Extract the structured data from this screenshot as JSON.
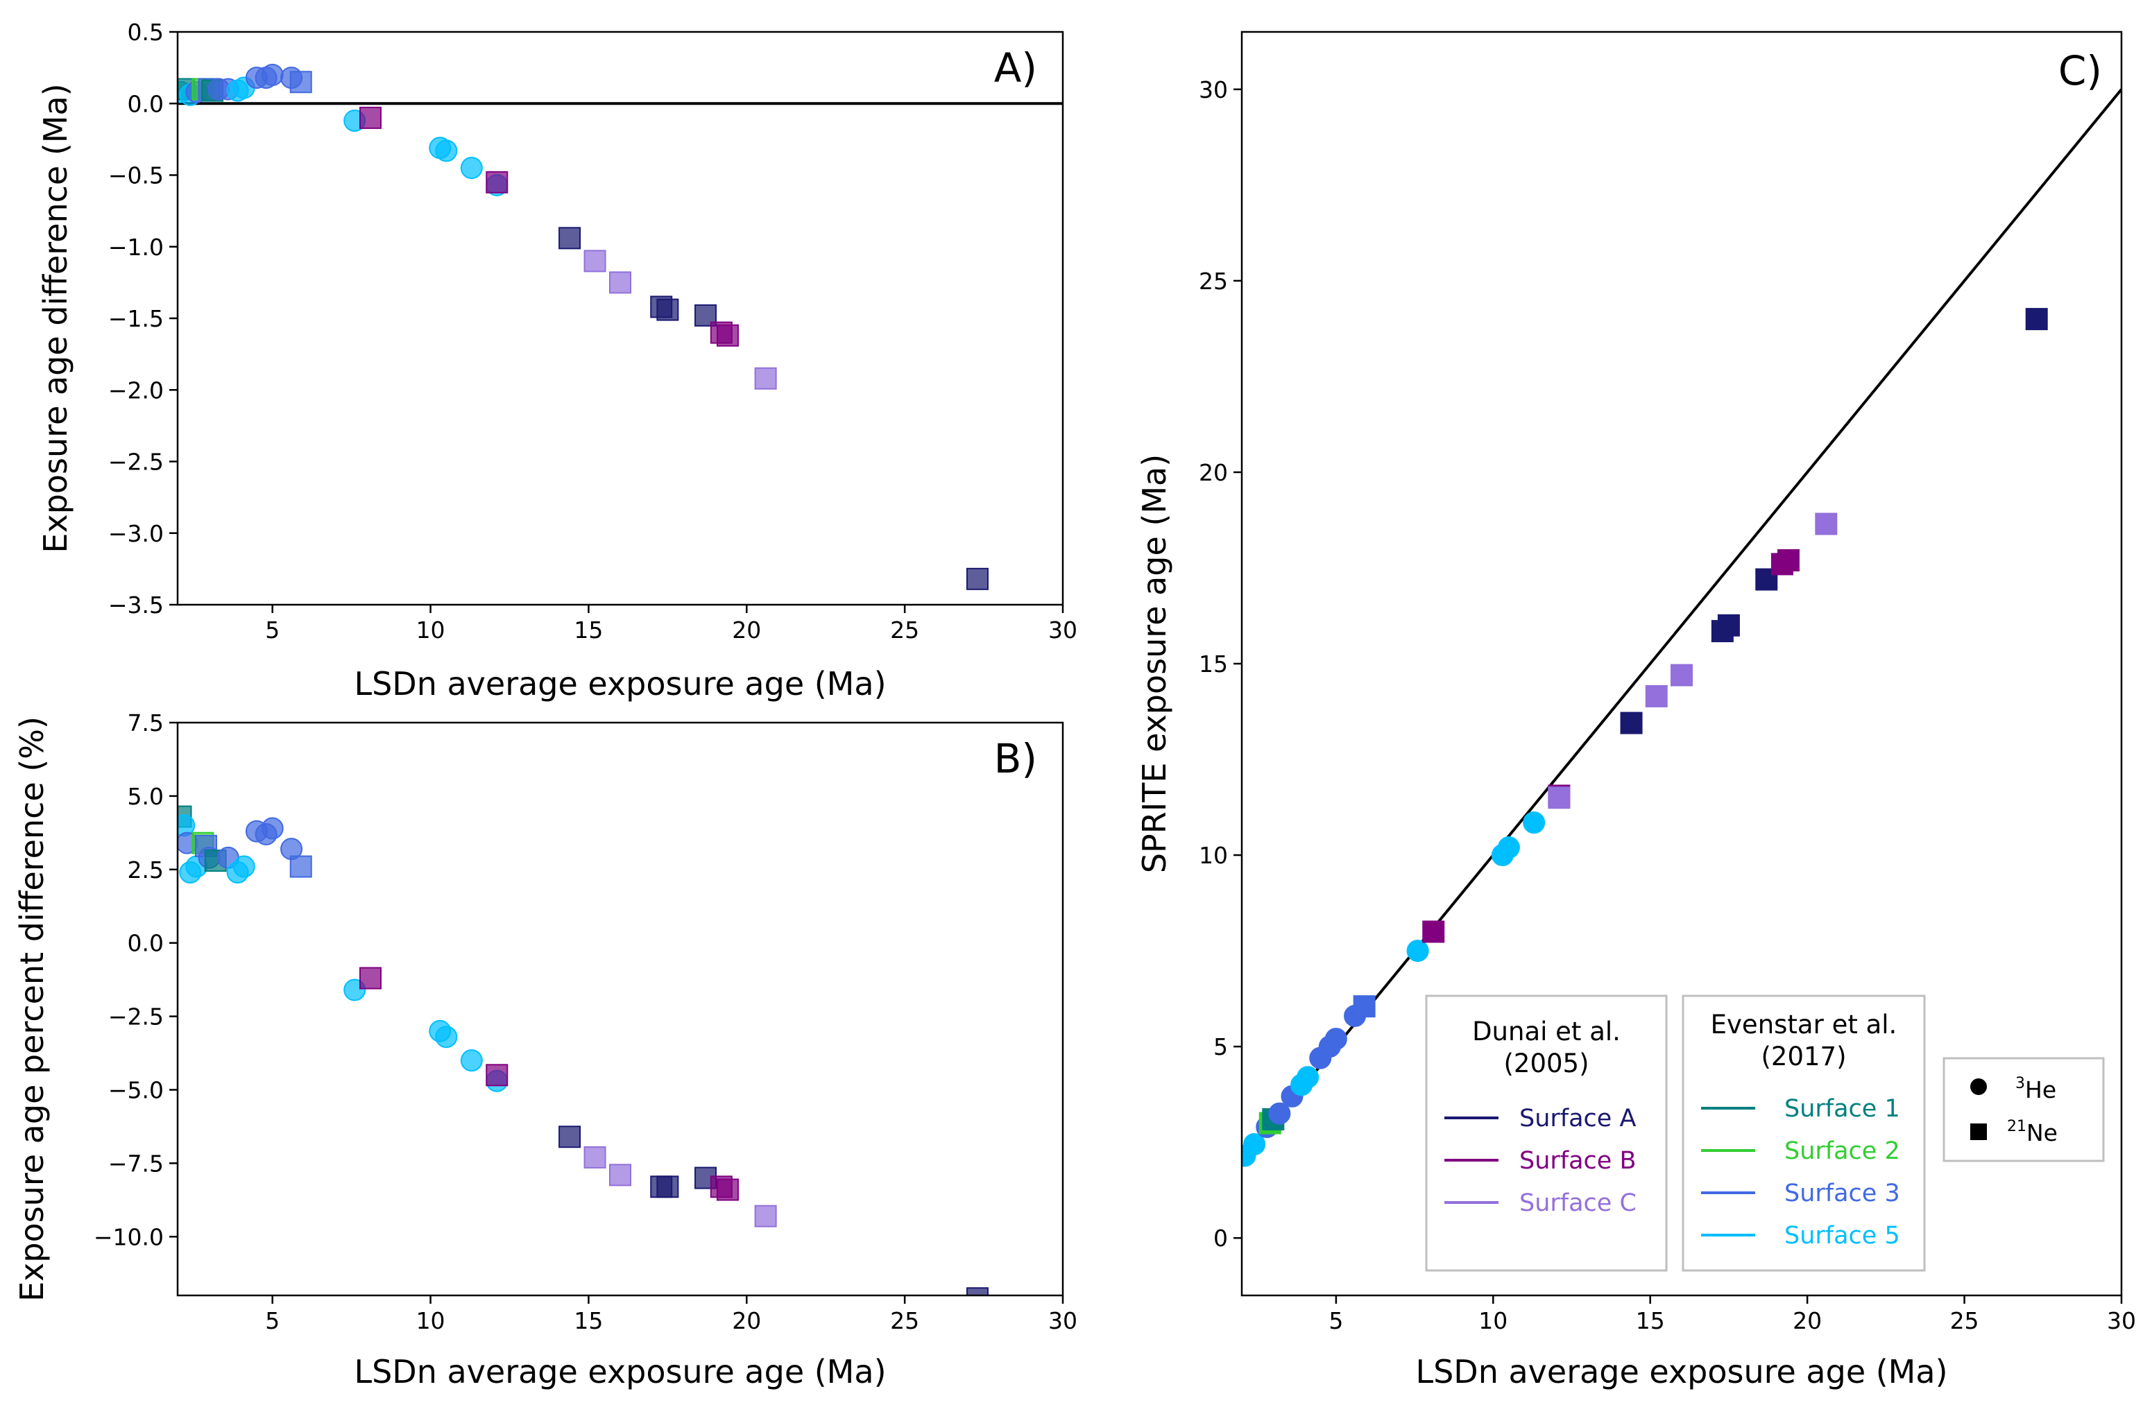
{
  "colors": {
    "Surface A": "#191970",
    "Surface B": "#800080",
    "Surface C": "#9370DB",
    "Surface 1": "#008080",
    "Surface 2": "#32CD32",
    "Surface 3": "#4169E1",
    "Surface 5": "#00BFFF"
  },
  "legends": {
    "dunai": {
      "title_line1": "Dunai et al.",
      "title_line2": "(2005)",
      "items": [
        "Surface A",
        "Surface B",
        "Surface C"
      ]
    },
    "evenstar": {
      "title_line1": "Evenstar et al.",
      "title_line2": "(2017)",
      "items": [
        "Surface 1",
        "Surface 2",
        "Surface 3",
        "Surface 5"
      ]
    },
    "symbols": {
      "he_sup": "3",
      "he_label": "He",
      "ne_sup": "21",
      "ne_label": "Ne"
    }
  },
  "chart_data": [
    {
      "panel": "A)",
      "type": "scatter",
      "xlabel": "LSDn average exposure age (Ma)",
      "ylabel": "Exposure age difference (Ma)",
      "xlim": [
        2,
        30
      ],
      "ylim": [
        -3.5,
        0.5
      ],
      "xticks": [
        5,
        10,
        15,
        20,
        25,
        30
      ],
      "yticks": [
        0.5,
        0.0,
        -0.5,
        -1.0,
        -1.5,
        -2.0,
        -2.5,
        -3.0,
        -3.5
      ],
      "ytick_labels": [
        "0.5",
        "0.0",
        "−0.5",
        "−1.0",
        "−1.5",
        "−2.0",
        "−2.5",
        "−3.0",
        "−3.5"
      ],
      "reference_line_y": 0,
      "points": [
        {
          "x": 2.1,
          "y": 0.08,
          "s": "Surface 5",
          "m": "circle"
        },
        {
          "x": 2.2,
          "y": 0.1,
          "s": "Surface 1",
          "m": "square"
        },
        {
          "x": 2.4,
          "y": 0.06,
          "s": "Surface 5",
          "m": "circle"
        },
        {
          "x": 2.6,
          "y": 0.08,
          "s": "Surface 3",
          "m": "circle"
        },
        {
          "x": 2.8,
          "y": 0.1,
          "s": "Surface 2",
          "m": "square"
        },
        {
          "x": 3.0,
          "y": 0.1,
          "s": "Surface 3",
          "m": "square"
        },
        {
          "x": 3.1,
          "y": 0.09,
          "s": "Surface 1",
          "m": "square"
        },
        {
          "x": 3.3,
          "y": 0.1,
          "s": "Surface 3",
          "m": "circle"
        },
        {
          "x": 3.6,
          "y": 0.1,
          "s": "Surface 3",
          "m": "circle"
        },
        {
          "x": 3.9,
          "y": 0.09,
          "s": "Surface 5",
          "m": "circle"
        },
        {
          "x": 4.1,
          "y": 0.11,
          "s": "Surface 5",
          "m": "circle"
        },
        {
          "x": 4.5,
          "y": 0.18,
          "s": "Surface 3",
          "m": "circle"
        },
        {
          "x": 4.8,
          "y": 0.18,
          "s": "Surface 3",
          "m": "circle"
        },
        {
          "x": 5.0,
          "y": 0.2,
          "s": "Surface 3",
          "m": "circle"
        },
        {
          "x": 5.6,
          "y": 0.18,
          "s": "Surface 3",
          "m": "circle"
        },
        {
          "x": 5.9,
          "y": 0.15,
          "s": "Surface 3",
          "m": "square"
        },
        {
          "x": 7.6,
          "y": -0.12,
          "s": "Surface 5",
          "m": "circle"
        },
        {
          "x": 8.1,
          "y": -0.1,
          "s": "Surface B",
          "m": "square"
        },
        {
          "x": 10.3,
          "y": -0.31,
          "s": "Surface 5",
          "m": "circle"
        },
        {
          "x": 10.5,
          "y": -0.33,
          "s": "Surface 5",
          "m": "circle"
        },
        {
          "x": 11.3,
          "y": -0.45,
          "s": "Surface 5",
          "m": "circle"
        },
        {
          "x": 12.1,
          "y": -0.57,
          "s": "Surface 5",
          "m": "circle"
        },
        {
          "x": 12.1,
          "y": -0.55,
          "s": "Surface B",
          "m": "square"
        },
        {
          "x": 14.4,
          "y": -0.94,
          "s": "Surface A",
          "m": "square"
        },
        {
          "x": 15.2,
          "y": -1.1,
          "s": "Surface C",
          "m": "square"
        },
        {
          "x": 16.0,
          "y": -1.25,
          "s": "Surface C",
          "m": "square"
        },
        {
          "x": 17.3,
          "y": -1.42,
          "s": "Surface A",
          "m": "square"
        },
        {
          "x": 17.5,
          "y": -1.44,
          "s": "Surface A",
          "m": "square"
        },
        {
          "x": 18.7,
          "y": -1.48,
          "s": "Surface A",
          "m": "square"
        },
        {
          "x": 19.2,
          "y": -1.6,
          "s": "Surface B",
          "m": "square"
        },
        {
          "x": 19.4,
          "y": -1.62,
          "s": "Surface B",
          "m": "square"
        },
        {
          "x": 20.6,
          "y": -1.92,
          "s": "Surface C",
          "m": "square"
        },
        {
          "x": 27.3,
          "y": -3.32,
          "s": "Surface A",
          "m": "square"
        }
      ]
    },
    {
      "panel": "B)",
      "type": "scatter",
      "xlabel": "LSDn average exposure age (Ma)",
      "ylabel": "Exposure age percent difference (%)",
      "xlim": [
        2,
        30
      ],
      "ylim": [
        -12,
        7.5
      ],
      "xticks": [
        5,
        10,
        15,
        20,
        25,
        30
      ],
      "yticks": [
        7.5,
        5.0,
        2.5,
        0.0,
        -2.5,
        -5.0,
        -7.5,
        -10.0
      ],
      "ytick_labels": [
        "7.5",
        "5.0",
        "2.5",
        "0.0",
        "−2.5",
        "−5.0",
        "−7.5",
        "−10.0"
      ],
      "points": [
        {
          "x": 2.1,
          "y": 4.3,
          "s": "Surface 1",
          "m": "square"
        },
        {
          "x": 2.2,
          "y": 4.0,
          "s": "Surface 5",
          "m": "circle"
        },
        {
          "x": 2.3,
          "y": 3.4,
          "s": "Surface 3",
          "m": "circle"
        },
        {
          "x": 2.4,
          "y": 2.4,
          "s": "Surface 5",
          "m": "circle"
        },
        {
          "x": 2.6,
          "y": 2.6,
          "s": "Surface 5",
          "m": "circle"
        },
        {
          "x": 2.8,
          "y": 3.4,
          "s": "Surface 2",
          "m": "square"
        },
        {
          "x": 2.9,
          "y": 3.3,
          "s": "Surface 3",
          "m": "square"
        },
        {
          "x": 3.0,
          "y": 2.9,
          "s": "Surface 3",
          "m": "circle"
        },
        {
          "x": 3.2,
          "y": 2.8,
          "s": "Surface 1",
          "m": "square"
        },
        {
          "x": 3.6,
          "y": 2.9,
          "s": "Surface 3",
          "m": "circle"
        },
        {
          "x": 3.9,
          "y": 2.4,
          "s": "Surface 5",
          "m": "circle"
        },
        {
          "x": 4.1,
          "y": 2.6,
          "s": "Surface 5",
          "m": "circle"
        },
        {
          "x": 4.5,
          "y": 3.8,
          "s": "Surface 3",
          "m": "circle"
        },
        {
          "x": 4.8,
          "y": 3.7,
          "s": "Surface 3",
          "m": "circle"
        },
        {
          "x": 5.0,
          "y": 3.9,
          "s": "Surface 3",
          "m": "circle"
        },
        {
          "x": 5.6,
          "y": 3.2,
          "s": "Surface 3",
          "m": "circle"
        },
        {
          "x": 5.9,
          "y": 2.6,
          "s": "Surface 3",
          "m": "square"
        },
        {
          "x": 7.6,
          "y": -1.6,
          "s": "Surface 5",
          "m": "circle"
        },
        {
          "x": 8.1,
          "y": -1.2,
          "s": "Surface B",
          "m": "square"
        },
        {
          "x": 10.3,
          "y": -3.0,
          "s": "Surface 5",
          "m": "circle"
        },
        {
          "x": 10.5,
          "y": -3.2,
          "s": "Surface 5",
          "m": "circle"
        },
        {
          "x": 11.3,
          "y": -4.0,
          "s": "Surface 5",
          "m": "circle"
        },
        {
          "x": 12.1,
          "y": -4.7,
          "s": "Surface 5",
          "m": "circle"
        },
        {
          "x": 12.1,
          "y": -4.5,
          "s": "Surface B",
          "m": "square"
        },
        {
          "x": 14.4,
          "y": -6.6,
          "s": "Surface A",
          "m": "square"
        },
        {
          "x": 15.2,
          "y": -7.3,
          "s": "Surface C",
          "m": "square"
        },
        {
          "x": 16.0,
          "y": -7.9,
          "s": "Surface C",
          "m": "square"
        },
        {
          "x": 17.3,
          "y": -8.3,
          "s": "Surface A",
          "m": "square"
        },
        {
          "x": 17.5,
          "y": -8.3,
          "s": "Surface A",
          "m": "square"
        },
        {
          "x": 18.7,
          "y": -8.0,
          "s": "Surface A",
          "m": "square"
        },
        {
          "x": 19.2,
          "y": -8.3,
          "s": "Surface B",
          "m": "square"
        },
        {
          "x": 19.4,
          "y": -8.4,
          "s": "Surface B",
          "m": "square"
        },
        {
          "x": 20.6,
          "y": -9.3,
          "s": "Surface C",
          "m": "square"
        },
        {
          "x": 27.3,
          "y": -12.1,
          "s": "Surface A",
          "m": "square"
        }
      ]
    },
    {
      "panel": "C)",
      "type": "scatter",
      "xlabel": "LSDn average exposure age (Ma)",
      "ylabel": "SPRITE exposure age (Ma)",
      "xlim": [
        2,
        30
      ],
      "ylim": [
        -1.5,
        31.5
      ],
      "xticks": [
        5,
        10,
        15,
        20,
        25,
        30
      ],
      "yticks": [
        0,
        5,
        10,
        15,
        20,
        25,
        30
      ],
      "ytick_labels": [
        "0",
        "5",
        "10",
        "15",
        "20",
        "25",
        "30"
      ],
      "reference_line": "1:1",
      "points": [
        {
          "x": 2.1,
          "y": 2.15,
          "s": "Surface 5",
          "m": "circle"
        },
        {
          "x": 2.4,
          "y": 2.45,
          "s": "Surface 5",
          "m": "circle"
        },
        {
          "x": 2.8,
          "y": 2.9,
          "s": "Surface 3",
          "m": "circle"
        },
        {
          "x": 2.9,
          "y": 3.0,
          "s": "Surface 2",
          "m": "square"
        },
        {
          "x": 3.0,
          "y": 3.1,
          "s": "Surface 1",
          "m": "square"
        },
        {
          "x": 3.2,
          "y": 3.25,
          "s": "Surface 3",
          "m": "circle"
        },
        {
          "x": 3.6,
          "y": 3.7,
          "s": "Surface 3",
          "m": "circle"
        },
        {
          "x": 3.9,
          "y": 4.0,
          "s": "Surface 5",
          "m": "circle"
        },
        {
          "x": 4.1,
          "y": 4.2,
          "s": "Surface 5",
          "m": "circle"
        },
        {
          "x": 4.5,
          "y": 4.7,
          "s": "Surface 3",
          "m": "circle"
        },
        {
          "x": 4.8,
          "y": 5.0,
          "s": "Surface 3",
          "m": "circle"
        },
        {
          "x": 5.0,
          "y": 5.2,
          "s": "Surface 3",
          "m": "circle"
        },
        {
          "x": 5.6,
          "y": 5.8,
          "s": "Surface 3",
          "m": "circle"
        },
        {
          "x": 5.9,
          "y": 6.05,
          "s": "Surface 3",
          "m": "square"
        },
        {
          "x": 7.6,
          "y": 7.5,
          "s": "Surface 5",
          "m": "circle"
        },
        {
          "x": 8.1,
          "y": 8.0,
          "s": "Surface B",
          "m": "square"
        },
        {
          "x": 10.3,
          "y": 10.0,
          "s": "Surface 5",
          "m": "circle"
        },
        {
          "x": 10.5,
          "y": 10.2,
          "s": "Surface 5",
          "m": "circle"
        },
        {
          "x": 11.3,
          "y": 10.85,
          "s": "Surface 5",
          "m": "circle"
        },
        {
          "x": 12.1,
          "y": 11.55,
          "s": "Surface B",
          "m": "square"
        },
        {
          "x": 12.1,
          "y": 11.5,
          "s": "Surface C",
          "m": "square"
        },
        {
          "x": 14.4,
          "y": 13.45,
          "s": "Surface A",
          "m": "square"
        },
        {
          "x": 15.2,
          "y": 14.15,
          "s": "Surface C",
          "m": "square"
        },
        {
          "x": 16.0,
          "y": 14.7,
          "s": "Surface C",
          "m": "square"
        },
        {
          "x": 17.3,
          "y": 15.85,
          "s": "Surface A",
          "m": "square"
        },
        {
          "x": 17.5,
          "y": 16.0,
          "s": "Surface A",
          "m": "square"
        },
        {
          "x": 18.7,
          "y": 17.2,
          "s": "Surface A",
          "m": "square"
        },
        {
          "x": 19.2,
          "y": 17.6,
          "s": "Surface B",
          "m": "square"
        },
        {
          "x": 19.4,
          "y": 17.7,
          "s": "Surface B",
          "m": "square"
        },
        {
          "x": 20.6,
          "y": 18.65,
          "s": "Surface C",
          "m": "square"
        },
        {
          "x": 27.3,
          "y": 24.0,
          "s": "Surface A",
          "m": "square"
        }
      ]
    }
  ]
}
